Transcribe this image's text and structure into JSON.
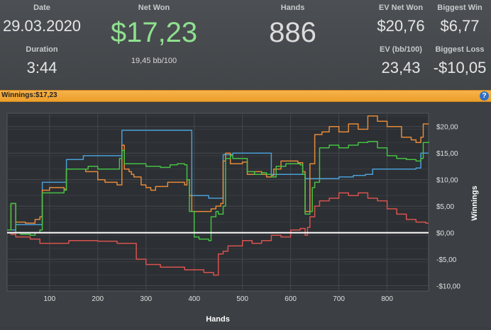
{
  "stats": {
    "date_label": "Date",
    "date_value": "29.03.2020",
    "duration_label": "Duration",
    "duration_value": "3:44",
    "net_won_label": "Net Won",
    "net_won_value": "$17,23",
    "bb_per_100": "19,45 bb/100",
    "hands_label": "Hands",
    "hands_value": "886",
    "ev_net_won_label": "EV Net Won",
    "ev_net_won_value": "$20,76",
    "ev_bb_label": "EV (bb/100)",
    "ev_bb_value": "23,43",
    "biggest_win_label": "Biggest Win",
    "biggest_win_value": "$6,77",
    "biggest_loss_label": "Biggest Loss",
    "biggest_loss_value": "-$10,05"
  },
  "winnings_bar": {
    "label": "Winnings:",
    "value": "$17,23",
    "help_glyph": "?"
  },
  "colors": {
    "net_won": "#8fe08f",
    "blue": "#4a9fd8",
    "orange": "#e58a3a",
    "green": "#45c045",
    "red": "#d9534f",
    "bar": "#f2a93b"
  },
  "chart_data": {
    "type": "line",
    "xlabel": "Hands",
    "ylabel": "Winnings",
    "xlim": [
      12,
      886
    ],
    "ylim": [
      -11,
      22.5
    ],
    "xticks": [
      100,
      200,
      300,
      400,
      500,
      600,
      700,
      800
    ],
    "xtick_labels": [
      "100",
      "200",
      "300",
      "400",
      "500",
      "600",
      "700",
      "800"
    ],
    "yticks": [
      20,
      15,
      10,
      5,
      0,
      -5,
      -10
    ],
    "ytick_labels": [
      "$20,00",
      "$15,00",
      "$10,00",
      "$5,00",
      "$0,00",
      "-$5,00",
      "-$10,00"
    ],
    "grid": true,
    "zero_line": 0,
    "series": [
      {
        "color": "#4a9fd8",
        "x": [
          12,
          30,
          80,
          85,
          130,
          135,
          165,
          170,
          200,
          240,
          250,
          295,
          390,
          395,
          430,
          440,
          455,
          460,
          475,
          480,
          520,
          550,
          560,
          620,
          630,
          650,
          700,
          730,
          755,
          770,
          835,
          860,
          870,
          886
        ],
        "y": [
          0.5,
          1.5,
          1.5,
          9.5,
          9.5,
          13.8,
          13.8,
          14.5,
          14.5,
          14.5,
          19.3,
          19.3,
          19.3,
          7.0,
          6.5,
          6.5,
          6.5,
          14.7,
          14.7,
          15.0,
          15.0,
          15.0,
          11.0,
          11.0,
          10.2,
          10.2,
          10.5,
          10.8,
          11.0,
          12.0,
          12.0,
          12.2,
          15.0,
          15.0
        ]
      },
      {
        "color": "#e58a3a",
        "x": [
          12,
          20,
          30,
          50,
          70,
          80,
          85,
          100,
          130,
          135,
          150,
          175,
          200,
          215,
          240,
          250,
          255,
          265,
          270,
          275,
          290,
          300,
          310,
          320,
          345,
          380,
          385,
          390,
          395,
          430,
          435,
          445,
          455,
          460,
          465,
          475,
          480,
          500,
          510,
          525,
          540,
          550,
          560,
          565,
          580,
          590,
          600,
          610,
          615,
          625,
          630,
          635,
          640,
          650,
          655,
          665,
          680,
          700,
          720,
          740,
          760,
          780,
          800,
          830,
          850,
          860,
          870,
          875,
          886
        ],
        "y": [
          0.5,
          5.5,
          2.0,
          1.8,
          2.5,
          3.0,
          8.0,
          8.5,
          8.2,
          12.0,
          12.0,
          11.5,
          10.0,
          9.5,
          9.0,
          16.5,
          12.0,
          11.5,
          11.0,
          10.5,
          9.0,
          8.5,
          8.0,
          8.7,
          9.5,
          9.0,
          10.0,
          7.0,
          4.0,
          4.0,
          4.5,
          5.0,
          5.5,
          13.5,
          15.0,
          13.0,
          13.0,
          13.3,
          11.0,
          11.5,
          11.0,
          10.5,
          10.8,
          12.0,
          13.5,
          13.5,
          13.5,
          13.5,
          13.2,
          11.5,
          4.0,
          4.0,
          13.0,
          18.5,
          18.5,
          19.0,
          20.0,
          19.0,
          20.5,
          19.5,
          22.0,
          21.0,
          20.0,
          18.0,
          17.5,
          17.0,
          18.0,
          20.5,
          20.5
        ]
      },
      {
        "color": "#45c045",
        "x": [
          12,
          20,
          30,
          40,
          60,
          70,
          80,
          85,
          100,
          130,
          135,
          180,
          200,
          240,
          245,
          250,
          255,
          270,
          300,
          330,
          350,
          365,
          380,
          385,
          390,
          400,
          410,
          430,
          435,
          445,
          450,
          460,
          465,
          475,
          480,
          500,
          510,
          525,
          540,
          550,
          560,
          570,
          590,
          600,
          610,
          620,
          625,
          630,
          640,
          645,
          650,
          660,
          680,
          700,
          720,
          740,
          760,
          780,
          800,
          820,
          840,
          860,
          870,
          875,
          886
        ],
        "y": [
          0.5,
          5.5,
          0.0,
          -0.3,
          -0.5,
          0.0,
          0.5,
          7.5,
          7.5,
          8.0,
          12.0,
          12.5,
          12.0,
          12.0,
          14.0,
          15.5,
          13.0,
          13.0,
          12.5,
          12.3,
          12.8,
          13.0,
          12.8,
          10.0,
          4.0,
          -0.8,
          -1.2,
          -1.5,
          3.0,
          4.0,
          3.5,
          5.0,
          14.0,
          14.5,
          14.0,
          14.0,
          11.5,
          11.0,
          11.3,
          11.0,
          10.5,
          12.5,
          13.0,
          13.0,
          13.0,
          12.8,
          11.0,
          3.5,
          4.0,
          8.5,
          9.5,
          16.0,
          16.5,
          16.0,
          16.5,
          17.0,
          17.2,
          16.0,
          14.5,
          14.0,
          13.8,
          13.5,
          14.0,
          17.0,
          17.2
        ]
      },
      {
        "color": "#d9534f",
        "x": [
          12,
          20,
          30,
          60,
          80,
          100,
          140,
          200,
          240,
          280,
          300,
          330,
          380,
          420,
          440,
          450,
          460,
          470,
          480,
          500,
          520,
          540,
          560,
          580,
          600,
          620,
          630,
          635,
          640,
          650,
          660,
          680,
          700,
          720,
          740,
          760,
          780,
          800,
          820,
          840,
          860,
          880,
          886
        ],
        "y": [
          0.0,
          -0.3,
          -0.8,
          -1.2,
          -2.0,
          -2.0,
          -1.5,
          -1.6,
          -2.0,
          -5.0,
          -6.0,
          -6.5,
          -7.0,
          -7.5,
          -8.0,
          -4.0,
          -3.5,
          -2.5,
          -2.5,
          -1.5,
          -2.0,
          -1.5,
          -0.5,
          -0.8,
          0.5,
          0.8,
          -0.5,
          1.0,
          3.0,
          5.0,
          6.0,
          6.5,
          7.5,
          7.0,
          7.5,
          6.5,
          6.0,
          4.5,
          3.5,
          2.5,
          2.0,
          1.8,
          1.8
        ]
      }
    ]
  }
}
